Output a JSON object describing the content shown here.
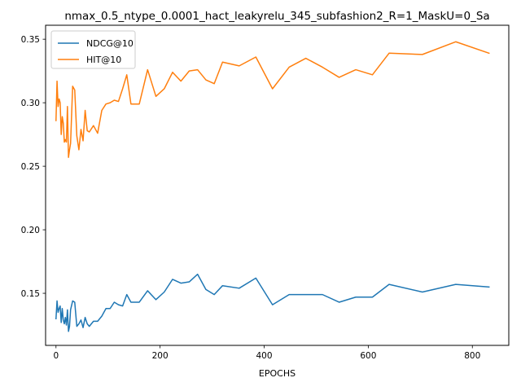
{
  "chart_data": {
    "type": "line",
    "title": "nmax_0.5_ntype_0.0001_hact_leakyrelu_345_subfashion2_R=1_MaskU=0_Sa",
    "xlabel": "EPOCHS",
    "ylabel": "",
    "xlim": [
      -20,
      870
    ],
    "ylim": [
      0.109,
      0.361
    ],
    "xticks": [
      0,
      200,
      400,
      600,
      800
    ],
    "yticks": [
      0.15,
      0.2,
      0.25,
      0.3,
      0.35
    ],
    "ytick_labels": [
      "0.15",
      "0.20",
      "0.25",
      "0.30",
      "0.35"
    ],
    "grid": false,
    "legend": "top-left",
    "series": [
      {
        "name": "NDCG@10",
        "color": "#1f77b4",
        "x": [
          0,
          2,
          4,
          6,
          8,
          10,
          12,
          14,
          16,
          18,
          20,
          22,
          24,
          26,
          28,
          32,
          36,
          40,
          44,
          48,
          52,
          56,
          60,
          64,
          72,
          80,
          88,
          96,
          104,
          112,
          120,
          128,
          136,
          144,
          160,
          176,
          192,
          208,
          224,
          240,
          256,
          272,
          288,
          304,
          320,
          352,
          384,
          416,
          448,
          480,
          512,
          544,
          576,
          608,
          640,
          704,
          768,
          832
        ],
        "y": [
          0.13,
          0.144,
          0.135,
          0.138,
          0.14,
          0.127,
          0.138,
          0.129,
          0.126,
          0.131,
          0.125,
          0.137,
          0.12,
          0.124,
          0.137,
          0.144,
          0.143,
          0.124,
          0.126,
          0.129,
          0.123,
          0.131,
          0.126,
          0.124,
          0.128,
          0.128,
          0.132,
          0.138,
          0.138,
          0.143,
          0.141,
          0.14,
          0.149,
          0.143,
          0.143,
          0.152,
          0.145,
          0.151,
          0.161,
          0.158,
          0.159,
          0.165,
          0.153,
          0.149,
          0.156,
          0.154,
          0.162,
          0.141,
          0.149,
          0.149,
          0.149,
          0.143,
          0.147,
          0.147,
          0.157,
          0.151,
          0.157,
          0.155
        ]
      },
      {
        "name": "HIT@10",
        "color": "#ff7f0e",
        "x": [
          0,
          2,
          4,
          6,
          8,
          10,
          12,
          14,
          16,
          18,
          20,
          22,
          24,
          26,
          28,
          32,
          36,
          40,
          44,
          48,
          52,
          56,
          60,
          64,
          72,
          80,
          88,
          96,
          104,
          112,
          120,
          128,
          136,
          144,
          160,
          176,
          192,
          208,
          224,
          240,
          256,
          272,
          288,
          304,
          320,
          352,
          384,
          416,
          448,
          480,
          512,
          544,
          576,
          608,
          640,
          704,
          768,
          832
        ],
        "y": [
          0.286,
          0.317,
          0.297,
          0.303,
          0.3,
          0.275,
          0.289,
          0.284,
          0.269,
          0.271,
          0.269,
          0.297,
          0.257,
          0.263,
          0.268,
          0.313,
          0.31,
          0.274,
          0.263,
          0.279,
          0.27,
          0.294,
          0.278,
          0.277,
          0.282,
          0.276,
          0.294,
          0.299,
          0.3,
          0.302,
          0.301,
          0.311,
          0.322,
          0.299,
          0.299,
          0.326,
          0.305,
          0.311,
          0.324,
          0.317,
          0.325,
          0.326,
          0.318,
          0.315,
          0.332,
          0.329,
          0.336,
          0.311,
          0.328,
          0.335,
          0.328,
          0.32,
          0.326,
          0.322,
          0.339,
          0.338,
          0.348,
          0.339
        ]
      }
    ]
  }
}
